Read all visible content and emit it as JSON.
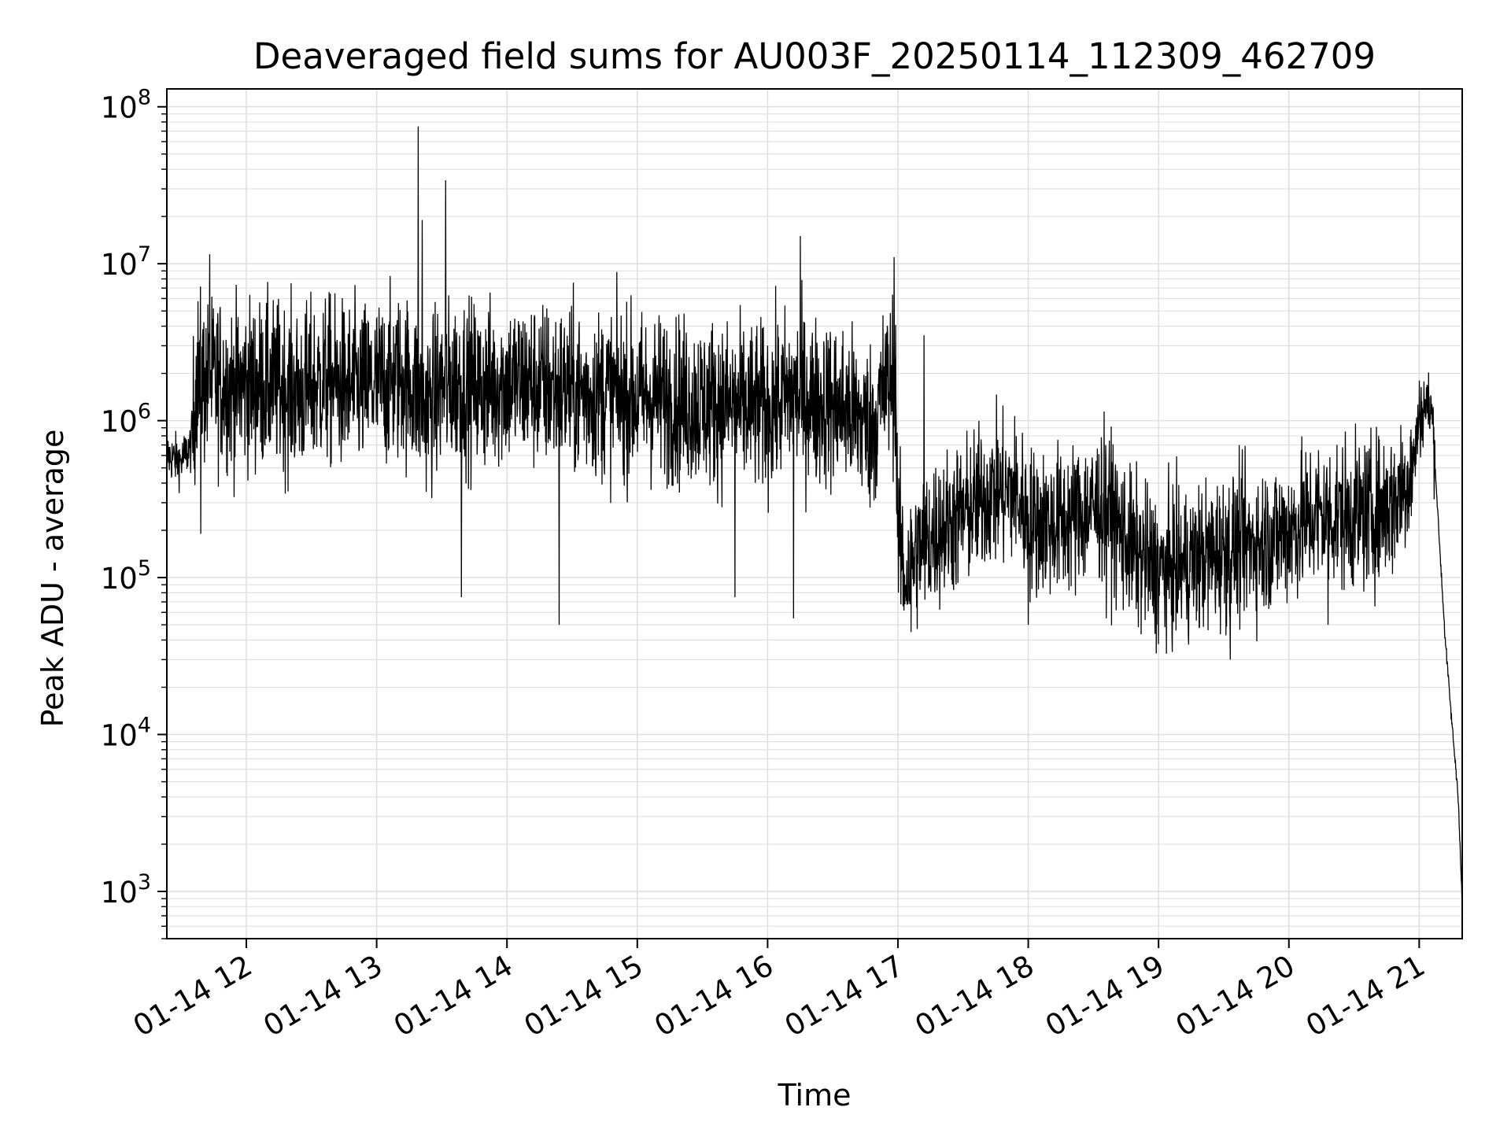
{
  "chart_data": {
    "type": "line",
    "title": "Deaveraged field sums for AU003F_20250114_112309_462709",
    "xlabel": "Time",
    "ylabel": "Peak ADU - average",
    "x_ticks": [
      "01-14 12",
      "01-14 13",
      "01-14 14",
      "01-14 15",
      "01-14 16",
      "01-14 17",
      "01-14 18",
      "01-14 19",
      "01-14 20",
      "01-14 21"
    ],
    "x_tick_hours": [
      12,
      13,
      14,
      15,
      16,
      17,
      18,
      19,
      20,
      21
    ],
    "xlim": [
      "2025-01-14 11:23",
      "2025-01-14 21:20"
    ],
    "xlim_hours": [
      11.39,
      21.33
    ],
    "yscale": "log",
    "ylim": [
      500,
      130000000
    ],
    "y_ticks": [
      {
        "base": "10",
        "exp": "3",
        "value": 1000
      },
      {
        "base": "10",
        "exp": "4",
        "value": 10000
      },
      {
        "base": "10",
        "exp": "5",
        "value": 100000
      },
      {
        "base": "10",
        "exp": "6",
        "value": 1000000
      },
      {
        "base": "10",
        "exp": "7",
        "value": 10000000
      },
      {
        "base": "10",
        "exp": "8",
        "value": 100000000
      }
    ],
    "grid": true,
    "line_color": "#000000",
    "grid_color": "#e0e0e0",
    "series": [
      {
        "x": [
          11.39,
          11.5,
          11.58,
          11.62,
          11.7,
          11.8,
          11.9,
          12.0,
          12.2,
          12.4,
          12.6,
          12.8,
          13.0,
          13.2,
          13.32,
          13.35,
          13.4,
          13.45,
          13.5,
          13.55,
          13.6,
          13.7,
          13.8,
          14.0,
          14.2,
          14.4,
          14.6,
          14.8,
          15.0,
          15.2,
          15.4,
          15.6,
          15.8,
          16.0,
          16.2,
          16.25,
          16.4,
          16.6,
          16.8,
          16.9,
          16.95,
          16.98,
          17.0,
          17.05,
          17.1,
          17.15,
          17.2,
          17.3,
          17.5,
          17.7,
          17.9,
          18.0,
          18.2,
          18.4,
          18.6,
          18.7,
          18.8,
          19.0,
          19.2,
          19.4,
          19.6,
          19.8,
          20.0,
          20.2,
          20.4,
          20.6,
          20.8,
          20.95,
          21.0,
          21.05,
          21.1,
          21.15,
          21.2,
          21.25,
          21.3,
          21.33
        ],
        "y": [
          600000,
          550000,
          700000,
          2000000,
          1700000,
          1800000,
          1600000,
          1700000,
          1700000,
          1500000,
          1800000,
          1600000,
          1700000,
          1900000,
          1500000,
          1200000,
          1300000,
          1400000,
          1700000,
          1600000,
          1800000,
          1700000,
          1600000,
          1800000,
          1700000,
          1600000,
          1500000,
          1500000,
          1400000,
          1400000,
          1300000,
          1300000,
          1200000,
          1200000,
          1500000,
          1400000,
          1300000,
          1200000,
          900000,
          1600000,
          1800000,
          2000000,
          200000,
          100000,
          120000,
          150000,
          160000,
          200000,
          250000,
          350000,
          350000,
          230000,
          220000,
          250000,
          300000,
          200000,
          150000,
          110000,
          120000,
          140000,
          160000,
          170000,
          200000,
          250000,
          250000,
          250000,
          300000,
          500000,
          1000000,
          1300000,
          1100000,
          200000,
          40000,
          12000,
          4000,
          800
        ]
      }
    ],
    "peaks": [
      {
        "x": 13.32,
        "y": 75000000
      },
      {
        "x": 13.53,
        "y": 34000000
      },
      {
        "x": 13.35,
        "y": 19000000
      },
      {
        "x": 16.25,
        "y": 15000000
      },
      {
        "x": 11.72,
        "y": 11500000
      },
      {
        "x": 16.97,
        "y": 11000000
      },
      {
        "x": 17.2,
        "y": 3500000
      },
      {
        "x": 21.0,
        "y": 1800000
      }
    ],
    "troughs": [
      {
        "x": 11.65,
        "y": 190000
      },
      {
        "x": 13.65,
        "y": 75000
      },
      {
        "x": 14.4,
        "y": 50000
      },
      {
        "x": 15.75,
        "y": 75000
      },
      {
        "x": 16.2,
        "y": 55000
      },
      {
        "x": 17.1,
        "y": 45000
      },
      {
        "x": 18.0,
        "y": 50000
      },
      {
        "x": 18.6,
        "y": 55000
      },
      {
        "x": 19.55,
        "y": 30000
      },
      {
        "x": 20.3,
        "y": 50000
      }
    ]
  }
}
